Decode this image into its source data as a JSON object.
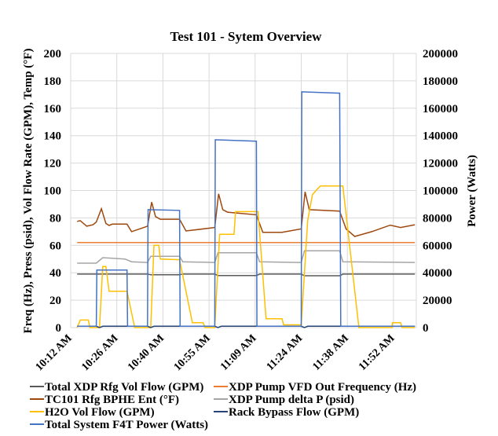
{
  "chart_data": {
    "type": "line",
    "title": "Test 101 - Sytem Overview",
    "ylabel": "Freq (Hz), Press (psid), Vol Flow Rate (GPM), Temp (°F)",
    "y2label": "Power (Watts)",
    "ylim": [
      0,
      200
    ],
    "y2lim": [
      0,
      200000
    ],
    "yticks": [
      "0",
      "20",
      "40",
      "60",
      "80",
      "100",
      "120",
      "140",
      "160",
      "180",
      "200"
    ],
    "y2ticks": [
      "0",
      "20000",
      "40000",
      "60000",
      "80000",
      "100000",
      "120000",
      "140000",
      "160000",
      "180000",
      "200000"
    ],
    "xticks": [
      "10:12 AM",
      "10:26 AM",
      "10:40 AM",
      "10:55 AM",
      "11:09 AM",
      "11:24 AM",
      "11:38 AM",
      "11:52 AM"
    ],
    "xlim": [
      "10:12",
      "11:59:30"
    ],
    "grid": true,
    "legend": "bottom",
    "series": [
      {
        "name": "Total XDP Rfg Vol Flow (GPM)",
        "color": "#595959",
        "axis": "left",
        "points": [
          [
            "10:14",
            39
          ],
          [
            "10:36",
            39
          ],
          [
            "10:37",
            38.5
          ],
          [
            "10:46",
            38.5
          ],
          [
            "10:47",
            39
          ],
          [
            "10:57",
            39
          ],
          [
            "10:58",
            38
          ],
          [
            "11:10",
            38
          ],
          [
            "11:11",
            39
          ],
          [
            "11:24",
            39
          ],
          [
            "11:25",
            37.8
          ],
          [
            "11:36",
            37.8
          ],
          [
            "11:37",
            39
          ],
          [
            "11:59:30",
            39
          ]
        ]
      },
      {
        "name": "XDP Pump VFD Out Frequency (Hz)",
        "color": "#ED7D31",
        "axis": "left",
        "points": [
          [
            "10:14",
            62
          ],
          [
            "11:59:30",
            62
          ]
        ]
      },
      {
        "name": "TC101 Rfg BPHE Ent (°F)",
        "color": "#9E480E",
        "axis": "left",
        "points": [
          [
            "10:14",
            77.5
          ],
          [
            "10:15",
            78
          ],
          [
            "10:17",
            74
          ],
          [
            "10:19",
            75
          ],
          [
            "10:20",
            77
          ],
          [
            "10:21:36",
            86.7
          ],
          [
            "10:23",
            76
          ],
          [
            "10:24",
            74.5
          ],
          [
            "10:25",
            75.5
          ],
          [
            "10:29:36",
            75.5
          ],
          [
            "10:31",
            70
          ],
          [
            "10:36",
            74
          ],
          [
            "10:37:18",
            91.5
          ],
          [
            "10:38:30",
            81
          ],
          [
            "10:40",
            79
          ],
          [
            "10:46",
            79
          ],
          [
            "10:48",
            70.5
          ],
          [
            "10:57",
            73
          ],
          [
            "10:58:12",
            97.6
          ],
          [
            "10:59:30",
            86
          ],
          [
            "11:01",
            84.2
          ],
          [
            "11:10",
            82.3
          ],
          [
            "11:12",
            69.5
          ],
          [
            "11:18",
            69.5
          ],
          [
            "11:24",
            72
          ],
          [
            "11:25:12",
            99
          ],
          [
            "11:26:30",
            86
          ],
          [
            "11:36",
            85
          ],
          [
            "11:38",
            72
          ],
          [
            "11:40:42",
            66.5
          ],
          [
            "11:46",
            70
          ],
          [
            "11:51:48",
            74.7
          ],
          [
            "11:55",
            73
          ],
          [
            "11:59:30",
            75
          ]
        ]
      },
      {
        "name": "XDP Pump delta P (psid)",
        "color": "#A5A5A5",
        "axis": "left",
        "points": [
          [
            "10:14",
            47
          ],
          [
            "10:20",
            47
          ],
          [
            "10:21",
            49
          ],
          [
            "10:22",
            51
          ],
          [
            "10:29",
            50
          ],
          [
            "10:31",
            48
          ],
          [
            "10:36",
            47.5
          ],
          [
            "10:37",
            52
          ],
          [
            "10:46",
            52
          ],
          [
            "10:47",
            48
          ],
          [
            "10:57",
            47.5
          ],
          [
            "10:58",
            54.6
          ],
          [
            "11:10",
            54.6
          ],
          [
            "11:11",
            48
          ],
          [
            "11:24",
            47.5
          ],
          [
            "11:25",
            56
          ],
          [
            "11:36",
            56
          ],
          [
            "11:37",
            48
          ],
          [
            "11:59:30",
            47.5
          ]
        ]
      },
      {
        "name": "H2O Vol Flow (GPM)",
        "color": "#FFC000",
        "axis": "left",
        "points": [
          [
            "10:14",
            0
          ],
          [
            "10:15",
            5.5
          ],
          [
            "10:17:30",
            5.5
          ],
          [
            "10:18",
            0
          ],
          [
            "10:21",
            0
          ],
          [
            "10:22",
            44.5
          ],
          [
            "10:23",
            44.5
          ],
          [
            "10:24",
            26.5
          ],
          [
            "10:29:36",
            26.5
          ],
          [
            "10:32",
            0
          ],
          [
            "10:37",
            0
          ],
          [
            "10:38",
            60
          ],
          [
            "10:39:30",
            60
          ],
          [
            "10:40",
            50
          ],
          [
            "10:46",
            49.5
          ],
          [
            "10:50",
            3.6
          ],
          [
            "10:53:18",
            3.6
          ],
          [
            "10:54",
            0
          ],
          [
            "10:57",
            0
          ],
          [
            "10:58:30",
            68
          ],
          [
            "11:03",
            68
          ],
          [
            "11:03:30",
            84.6
          ],
          [
            "11:10:30",
            84.6
          ],
          [
            "11:13",
            6.5
          ],
          [
            "11:18",
            6.5
          ],
          [
            "11:18:30",
            2
          ],
          [
            "11:24",
            2
          ],
          [
            "11:26",
            78
          ],
          [
            "11:27:30",
            97
          ],
          [
            "11:29",
            101
          ],
          [
            "11:30",
            103.3
          ],
          [
            "11:37",
            103.3
          ],
          [
            "11:42",
            0
          ],
          [
            "11:52:18",
            0
          ],
          [
            "11:52:30",
            3.6
          ],
          [
            "11:55",
            3.6
          ],
          [
            "11:55:30",
            0
          ],
          [
            "11:59:30",
            0
          ]
        ]
      },
      {
        "name": "Rack Bypass Flow (GPM)",
        "color": "#264478",
        "axis": "left",
        "points": [
          [
            "10:14",
            1
          ],
          [
            "10:20",
            1
          ],
          [
            "10:21",
            0
          ],
          [
            "10:22",
            1
          ],
          [
            "10:36",
            1
          ],
          [
            "10:37",
            0
          ],
          [
            "10:38",
            1
          ],
          [
            "10:57",
            1
          ],
          [
            "10:58",
            0
          ],
          [
            "10:59",
            1
          ],
          [
            "11:24",
            1
          ],
          [
            "11:25",
            0
          ],
          [
            "11:26",
            1
          ],
          [
            "11:59:30",
            1
          ]
        ]
      },
      {
        "name": "Total System F4T Power (Watts)",
        "color": "#4472C4",
        "axis": "right",
        "points": [
          [
            "10:14",
            1000
          ],
          [
            "10:20",
            1000
          ],
          [
            "10:20:10",
            42000
          ],
          [
            "10:29:36",
            42000
          ],
          [
            "10:29:46",
            1000
          ],
          [
            "10:36",
            1000
          ],
          [
            "10:36:10",
            86000
          ],
          [
            "10:46",
            85500
          ],
          [
            "10:46:10",
            1000
          ],
          [
            "10:57",
            1000
          ],
          [
            "10:57:10",
            137000
          ],
          [
            "11:10",
            136000
          ],
          [
            "11:10:10",
            1000
          ],
          [
            "11:24",
            1000
          ],
          [
            "11:24:10",
            172000
          ],
          [
            "11:36",
            171000
          ],
          [
            "11:36:20",
            1000
          ],
          [
            "11:59:30",
            1000
          ]
        ]
      }
    ]
  }
}
